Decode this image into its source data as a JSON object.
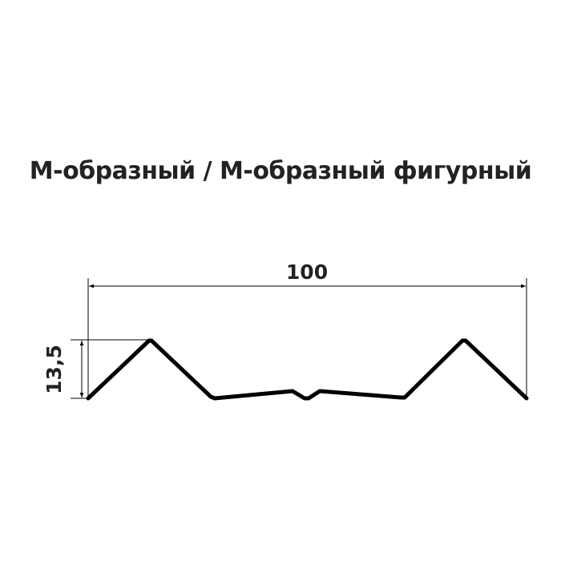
{
  "title": "М-образный / М-образный фигурный",
  "dimensions": {
    "width_label": "100",
    "height_label": "13,5"
  },
  "colors": {
    "profile": "#000000",
    "text": "#222222"
  }
}
